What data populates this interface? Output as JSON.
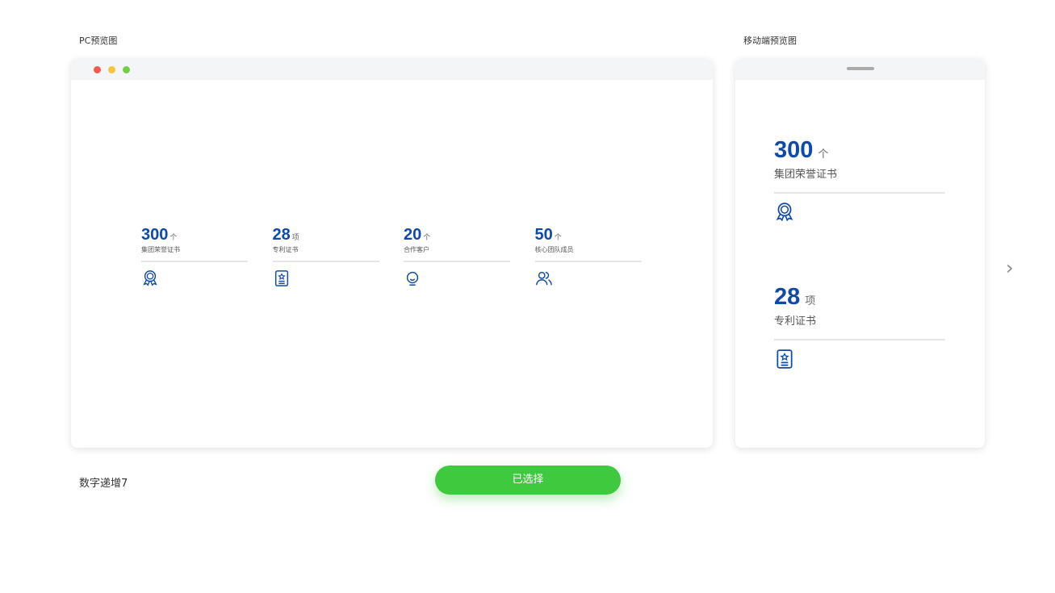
{
  "pc_label": "PC预览图",
  "mobile_label": "移动端预览图",
  "template_name": "数字递增7",
  "select_button": "已选择",
  "colors": {
    "accent": "#0f4aa8",
    "button": "#3ec93e"
  },
  "stats": [
    {
      "value": "300",
      "unit": "个",
      "label": "集团荣誉证书",
      "icon": "medal-icon"
    },
    {
      "value": "28",
      "unit": "项",
      "label": "专利证书",
      "icon": "certificate-icon"
    },
    {
      "value": "20",
      "unit": "个",
      "label": "合作客户",
      "icon": "client-icon"
    },
    {
      "value": "50",
      "unit": "个",
      "label": "核心团队成员",
      "icon": "team-icon"
    }
  ]
}
